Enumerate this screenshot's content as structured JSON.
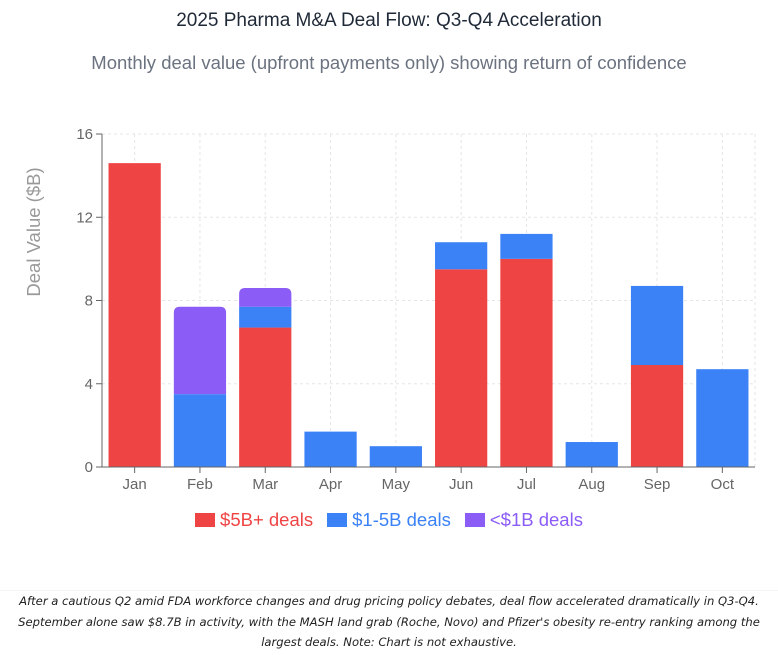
{
  "header": {
    "title": "2025 Pharma M&A Deal Flow: Q3-Q4 Acceleration",
    "subtitle": "Monthly deal value (upfront payments only) showing return of confidence"
  },
  "chart_data": {
    "type": "bar",
    "stacked": true,
    "title": "2025 Pharma M&A Deal Flow: Q3-Q4 Acceleration",
    "subtitle": "Monthly deal value (upfront payments only) showing return of confidence",
    "xlabel": "",
    "ylabel": "Deal Value ($B)",
    "ylim": [
      0,
      16
    ],
    "yticks": [
      0,
      4,
      8,
      12,
      16
    ],
    "grid": true,
    "legend_position": "bottom-center",
    "categories": [
      "Jan",
      "Feb",
      "Mar",
      "Apr",
      "May",
      "Jun",
      "Jul",
      "Aug",
      "Sep",
      "Oct"
    ],
    "series": [
      {
        "name": "$5B+ deals",
        "color": "#ef4444",
        "values": [
          14.6,
          0,
          6.7,
          0,
          0,
          9.5,
          10.0,
          0,
          4.9,
          0
        ]
      },
      {
        "name": "$1-5B deals",
        "color": "#3b82f6",
        "values": [
          0,
          3.5,
          1.0,
          1.7,
          1.0,
          1.3,
          1.2,
          1.2,
          3.8,
          4.7
        ]
      },
      {
        "name": "<$1B deals",
        "color": "#8b5cf6",
        "values": [
          0,
          4.2,
          0.9,
          0,
          0,
          0,
          0,
          0,
          0,
          0
        ]
      }
    ]
  },
  "legend": {
    "items": [
      {
        "label": "$5B+ deals",
        "color": "#ef4444"
      },
      {
        "label": "$1-5B deals",
        "color": "#3b82f6"
      },
      {
        "label": "<$1B deals",
        "color": "#8b5cf6"
      }
    ]
  },
  "footer": {
    "text": "After a cautious Q2 amid FDA workforce changes and drug pricing policy debates, deal flow accelerated dramatically in Q3-Q4. September alone saw $8.7B in activity, with the MASH land grab (Roche, Novo) and Pfizer's obesity re-entry ranking among the largest deals. Note: Chart is not exhaustive."
  }
}
